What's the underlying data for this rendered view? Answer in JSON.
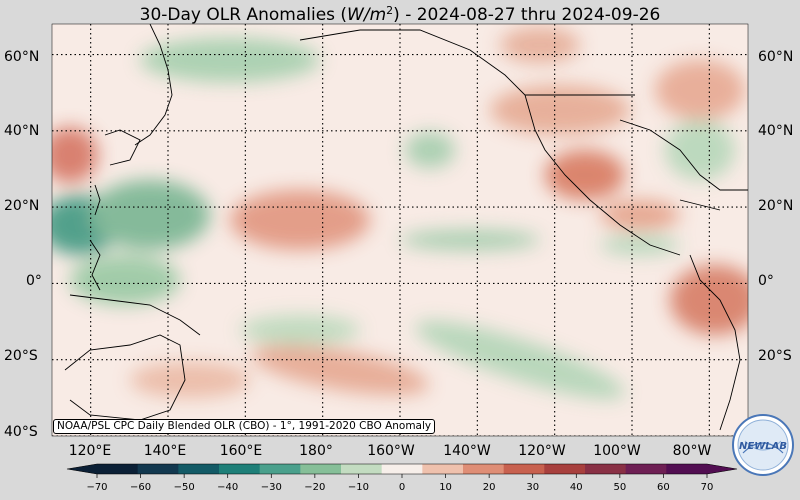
{
  "title": {
    "prefix": "30-Day OLR Anomalies (",
    "unit_base": "W/m",
    "unit_exp": "2",
    "suffix": ") - 2024-08-27 thru 2024-09-26"
  },
  "lat_labels": [
    "60°N",
    "40°N",
    "20°N",
    "0°",
    "20°S",
    "40°S"
  ],
  "lat_values": [
    60,
    40,
    20,
    0,
    -20,
    -40
  ],
  "lon_labels": [
    "120°E",
    "140°E",
    "160°E",
    "180°",
    "160°W",
    "140°W",
    "120°W",
    "100°W",
    "80°W"
  ],
  "lon_values": [
    120,
    140,
    160,
    180,
    200,
    220,
    240,
    260,
    280
  ],
  "map_extent": {
    "lon_min": 110,
    "lon_max": 290,
    "lat_min": -40,
    "lat_max": 68
  },
  "credit": "NOAA/PSL CPC Daily Blended OLR (CBO) - 1°, 1991-2020 CBO Anomaly",
  "colorbar": {
    "ticks": [
      "−70",
      "−60",
      "−50",
      "−40",
      "−30",
      "−20",
      "−10",
      "0",
      "10",
      "20",
      "30",
      "40",
      "50",
      "60",
      "70"
    ],
    "tick_values": [
      -70,
      -60,
      -50,
      -40,
      -30,
      -20,
      -10,
      0,
      10,
      20,
      30,
      40,
      50,
      60,
      70
    ],
    "colors": [
      "#0b2036",
      "#12384f",
      "#135a66",
      "#1e7f78",
      "#4aa08c",
      "#86bf98",
      "#c3dcc1",
      "#f7efea",
      "#efc1ad",
      "#df8e76",
      "#c8614f",
      "#a8403e",
      "#893045",
      "#6e1f54",
      "#520e52"
    ]
  },
  "logo": {
    "text": "NEWLAB"
  },
  "colors": {
    "background": "#d9d9d9",
    "neutral": "#f7ece6"
  }
}
